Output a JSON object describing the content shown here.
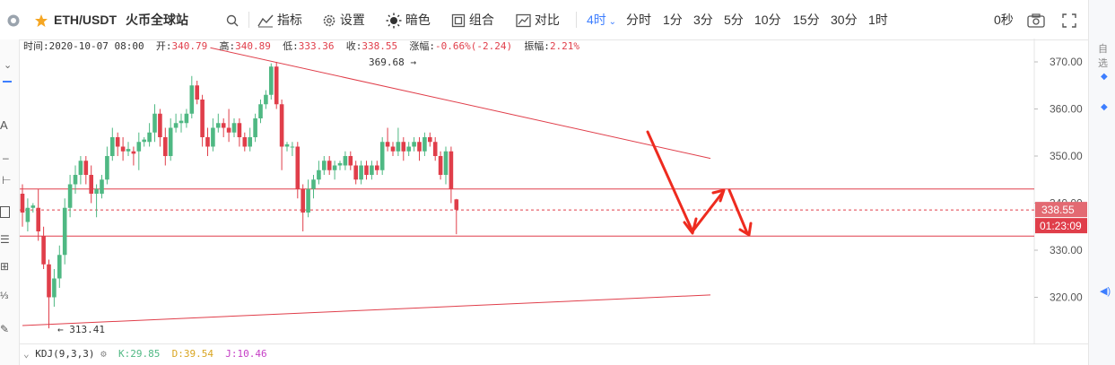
{
  "header": {
    "pair": "ETH/USDT",
    "exchange": "火币全球站",
    "tools": [
      "指标",
      "设置",
      "暗色",
      "组合",
      "对比"
    ],
    "active_interval": "4时",
    "intervals": [
      "分时",
      "1分",
      "3分",
      "5分",
      "10分",
      "15分",
      "30分",
      "1时"
    ],
    "countdown": "0秒"
  },
  "info": {
    "time_label": "时间:",
    "time": "2020-10-07 08:00",
    "open_label": "开:",
    "open": "340.79",
    "high_label": "高:",
    "high": "340.89",
    "low_label": "低:",
    "low": "333.36",
    "close_label": "收:",
    "close": "338.55",
    "change_label": "涨幅:",
    "change": "-0.66%(-2.24)",
    "amp_label": "振幅:",
    "amp": "2.21%"
  },
  "kdj": {
    "name": "KDJ(9,3,3)",
    "k": "K:29.85",
    "d": "D:39.54",
    "j": "J:10.46"
  },
  "right_panel": {
    "label": "自选"
  },
  "colors": {
    "up": "#4fb883",
    "down": "#e03e4a",
    "line": "#e03e4a",
    "accent": "#3d7eff"
  },
  "chart_data": {
    "type": "candlestick",
    "ylim": [
      313,
      373
    ],
    "yticks": [
      "370.00",
      "360.00",
      "350.00",
      "340.00",
      "330.00",
      "320.00"
    ],
    "last_price": "338.55",
    "timer": "01:23:09",
    "max_label": "369.68 →",
    "min_label": "← 313.41",
    "candles": [
      {
        "o": 342,
        "c": 338,
        "h": 344,
        "l": 335
      },
      {
        "o": 336,
        "c": 339,
        "h": 341,
        "l": 334
      },
      {
        "o": 339,
        "c": 339.5,
        "h": 340,
        "l": 338
      },
      {
        "o": 339,
        "c": 334,
        "h": 343,
        "l": 332
      },
      {
        "o": 333,
        "c": 327,
        "h": 335,
        "l": 326
      },
      {
        "o": 327,
        "c": 320,
        "h": 328,
        "l": 313.4
      },
      {
        "o": 320,
        "c": 324,
        "h": 326,
        "l": 318
      },
      {
        "o": 324,
        "c": 329,
        "h": 331,
        "l": 322
      },
      {
        "o": 329,
        "c": 339,
        "h": 341,
        "l": 327
      },
      {
        "o": 339,
        "c": 344,
        "h": 346,
        "l": 337
      },
      {
        "o": 344,
        "c": 346,
        "h": 348,
        "l": 342
      },
      {
        "o": 346,
        "c": 349,
        "h": 350,
        "l": 344
      },
      {
        "o": 349,
        "c": 346,
        "h": 350,
        "l": 344
      },
      {
        "o": 346,
        "c": 342,
        "h": 348,
        "l": 340
      },
      {
        "o": 342,
        "c": 343,
        "h": 344,
        "l": 337
      },
      {
        "o": 342,
        "c": 345,
        "h": 346,
        "l": 341
      },
      {
        "o": 345,
        "c": 350,
        "h": 352,
        "l": 344
      },
      {
        "o": 350,
        "c": 354,
        "h": 356,
        "l": 349
      },
      {
        "o": 354,
        "c": 352,
        "h": 355,
        "l": 350
      },
      {
        "o": 352,
        "c": 351,
        "h": 354,
        "l": 349
      },
      {
        "o": 351,
        "c": 351.5,
        "h": 353,
        "l": 350
      },
      {
        "o": 351,
        "c": 350.5,
        "h": 352,
        "l": 348
      },
      {
        "o": 351,
        "c": 353,
        "h": 355,
        "l": 347
      },
      {
        "o": 353,
        "c": 353.5,
        "h": 354,
        "l": 352
      },
      {
        "o": 353,
        "c": 355,
        "h": 357,
        "l": 352
      },
      {
        "o": 355,
        "c": 359,
        "h": 361,
        "l": 353
      },
      {
        "o": 359,
        "c": 354,
        "h": 360,
        "l": 352
      },
      {
        "o": 354,
        "c": 350,
        "h": 356,
        "l": 348
      },
      {
        "o": 350,
        "c": 356,
        "h": 358,
        "l": 349
      },
      {
        "o": 356,
        "c": 357,
        "h": 359,
        "l": 355
      },
      {
        "o": 357,
        "c": 357.5,
        "h": 359,
        "l": 355
      },
      {
        "o": 357,
        "c": 359,
        "h": 360,
        "l": 356
      },
      {
        "o": 359,
        "c": 365,
        "h": 367,
        "l": 358
      },
      {
        "o": 365,
        "c": 362,
        "h": 366,
        "l": 361
      },
      {
        "o": 362,
        "c": 354,
        "h": 363,
        "l": 352
      },
      {
        "o": 354,
        "c": 352,
        "h": 356,
        "l": 350
      },
      {
        "o": 352,
        "c": 356,
        "h": 358,
        "l": 351
      },
      {
        "o": 356,
        "c": 357,
        "h": 359,
        "l": 355
      },
      {
        "o": 357,
        "c": 356,
        "h": 358,
        "l": 354
      },
      {
        "o": 356,
        "c": 355,
        "h": 360,
        "l": 353
      },
      {
        "o": 355,
        "c": 357,
        "h": 358,
        "l": 354
      },
      {
        "o": 357,
        "c": 354,
        "h": 358,
        "l": 352
      },
      {
        "o": 354,
        "c": 352,
        "h": 355,
        "l": 351
      },
      {
        "o": 352,
        "c": 354,
        "h": 356,
        "l": 351
      },
      {
        "o": 354,
        "c": 358,
        "h": 359,
        "l": 353
      },
      {
        "o": 358,
        "c": 361,
        "h": 362,
        "l": 357
      },
      {
        "o": 361,
        "c": 363,
        "h": 364,
        "l": 360
      },
      {
        "o": 363,
        "c": 369,
        "h": 369.68,
        "l": 362
      },
      {
        "o": 369,
        "c": 361,
        "h": 370,
        "l": 360
      },
      {
        "o": 361,
        "c": 352,
        "h": 362,
        "l": 347
      },
      {
        "o": 352,
        "c": 352.5,
        "h": 353,
        "l": 351
      },
      {
        "o": 352,
        "c": 352,
        "h": 353,
        "l": 350
      },
      {
        "o": 352,
        "c": 343,
        "h": 353,
        "l": 341
      },
      {
        "o": 343,
        "c": 338,
        "h": 344,
        "l": 334
      },
      {
        "o": 338,
        "c": 343,
        "h": 345,
        "l": 337
      },
      {
        "o": 343,
        "c": 345,
        "h": 346,
        "l": 341
      },
      {
        "o": 345,
        "c": 347,
        "h": 349,
        "l": 344
      },
      {
        "o": 347,
        "c": 349,
        "h": 350,
        "l": 346
      },
      {
        "o": 349,
        "c": 347,
        "h": 350,
        "l": 346
      },
      {
        "o": 347,
        "c": 348,
        "h": 349,
        "l": 345
      },
      {
        "o": 348,
        "c": 348.5,
        "h": 349,
        "l": 347
      },
      {
        "o": 348,
        "c": 350,
        "h": 351,
        "l": 347
      },
      {
        "o": 350,
        "c": 348,
        "h": 351,
        "l": 347
      },
      {
        "o": 348,
        "c": 345,
        "h": 349,
        "l": 344
      },
      {
        "o": 345,
        "c": 348,
        "h": 349,
        "l": 344
      },
      {
        "o": 348,
        "c": 346,
        "h": 349,
        "l": 345
      },
      {
        "o": 346,
        "c": 348,
        "h": 349,
        "l": 345
      },
      {
        "o": 348,
        "c": 347,
        "h": 349,
        "l": 346
      },
      {
        "o": 347,
        "c": 353,
        "h": 354,
        "l": 346
      },
      {
        "o": 353,
        "c": 352,
        "h": 356,
        "l": 351
      },
      {
        "o": 352,
        "c": 351,
        "h": 353,
        "l": 350
      },
      {
        "o": 351,
        "c": 353,
        "h": 356,
        "l": 350
      },
      {
        "o": 353,
        "c": 351,
        "h": 354,
        "l": 349
      },
      {
        "o": 351,
        "c": 352,
        "h": 353,
        "l": 350
      },
      {
        "o": 352,
        "c": 353,
        "h": 354,
        "l": 351
      },
      {
        "o": 353,
        "c": 351,
        "h": 354,
        "l": 349
      },
      {
        "o": 351,
        "c": 354,
        "h": 355,
        "l": 350
      },
      {
        "o": 354,
        "c": 353,
        "h": 355,
        "l": 352
      },
      {
        "o": 353,
        "c": 350,
        "h": 354,
        "l": 349
      },
      {
        "o": 350,
        "c": 346,
        "h": 351,
        "l": 345
      },
      {
        "o": 346,
        "c": 351,
        "h": 352,
        "l": 344
      },
      {
        "o": 351,
        "c": 343,
        "h": 352,
        "l": 340
      },
      {
        "o": 340.8,
        "c": 338.6,
        "h": 340.9,
        "l": 333.4
      }
    ],
    "levels": {
      "resistance": 343,
      "support": 333,
      "current": 338.55
    },
    "trendlines": [
      {
        "from": {
          "i": 35.5,
          "p": 373
        },
        "to": {
          "i": 130,
          "p": 349.5
        }
      },
      {
        "from": {
          "i": 0,
          "p": 314
        },
        "to": {
          "i": 130,
          "p": 320.5
        }
      }
    ]
  }
}
